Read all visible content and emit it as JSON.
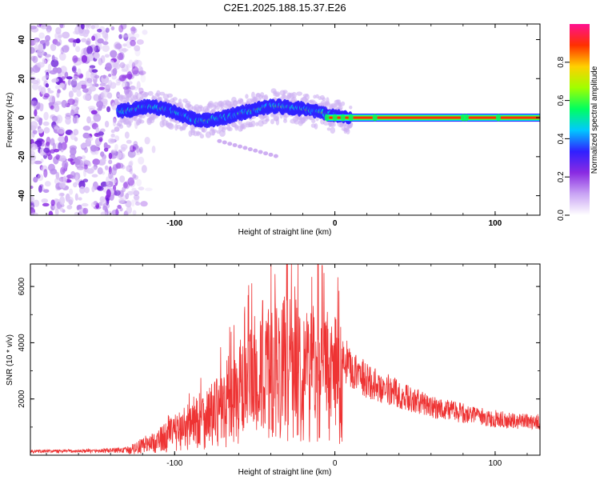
{
  "title": "C2E1.2025.188.15.37.E26",
  "chart_data": [
    {
      "type": "heatmap",
      "xlabel": "Height of straight line (km)",
      "ylabel": "Frequency (Hz)",
      "xlim": [
        -190,
        128
      ],
      "ylim": [
        -50,
        48
      ],
      "x_ticks": [
        -100,
        0,
        100
      ],
      "y_ticks": [
        -40,
        -20,
        0,
        20,
        40
      ],
      "colorbar": {
        "label": "Normalized spectral amplitude",
        "range": [
          0,
          1
        ],
        "ticks": [
          0.0,
          0.2,
          0.4,
          0.6,
          0.8
        ],
        "colormap": [
          "#ffffff",
          "#c9a4f4",
          "#8a2be2",
          "#3020ff",
          "#00c8ff",
          "#00ff60",
          "#a0ff00",
          "#ffd000",
          "#ff3000",
          "#ff1090"
        ]
      },
      "features": {
        "noise_region_x": [
          -190,
          -120
        ],
        "signal_start_x": -135,
        "signal_line_freq": 0,
        "signal_freq_track": [
          {
            "x": -135,
            "y": 3
          },
          {
            "x": -115,
            "y": 6
          },
          {
            "x": -100,
            "y": 3
          },
          {
            "x": -85,
            "y": -2
          },
          {
            "x": -70,
            "y": 0
          },
          {
            "x": -55,
            "y": 3
          },
          {
            "x": -40,
            "y": 6
          },
          {
            "x": -25,
            "y": 5
          },
          {
            "x": -10,
            "y": 3
          },
          {
            "x": 0,
            "y": 1
          },
          {
            "x": 10,
            "y": 0
          },
          {
            "x": 128,
            "y": 0
          }
        ]
      }
    },
    {
      "type": "line",
      "xlabel": "Height of straight line (km)",
      "ylabel": "SNR (10 * v/v)",
      "xlim": [
        -190,
        128
      ],
      "ylim": [
        0,
        6800
      ],
      "x_ticks": [
        -100,
        0,
        100
      ],
      "y_ticks": [
        2000,
        4000,
        6000
      ],
      "color": "#ee3333",
      "envelope": [
        {
          "x": -190,
          "y": 150
        },
        {
          "x": -150,
          "y": 180
        },
        {
          "x": -130,
          "y": 250
        },
        {
          "x": -115,
          "y": 600
        },
        {
          "x": -100,
          "y": 1200
        },
        {
          "x": -85,
          "y": 1900
        },
        {
          "x": -70,
          "y": 2400
        },
        {
          "x": -60,
          "y": 3200
        },
        {
          "x": -50,
          "y": 3900
        },
        {
          "x": -40,
          "y": 4400
        },
        {
          "x": -30,
          "y": 4800
        },
        {
          "x": -20,
          "y": 4600
        },
        {
          "x": -10,
          "y": 4300
        },
        {
          "x": 0,
          "y": 4100
        },
        {
          "x": 10,
          "y": 3300
        },
        {
          "x": 20,
          "y": 2800
        },
        {
          "x": 30,
          "y": 2550
        },
        {
          "x": 40,
          "y": 2300
        },
        {
          "x": 50,
          "y": 2050
        },
        {
          "x": 60,
          "y": 1850
        },
        {
          "x": 75,
          "y": 1650
        },
        {
          "x": 90,
          "y": 1450
        },
        {
          "x": 110,
          "y": 1300
        },
        {
          "x": 128,
          "y": 1250
        }
      ],
      "peaks": [
        {
          "x": -30,
          "y": 6800
        },
        {
          "x": -8,
          "y": 6750
        },
        {
          "x": -45,
          "y": 5500
        },
        {
          "x": -25,
          "y": 6000
        }
      ]
    }
  ]
}
